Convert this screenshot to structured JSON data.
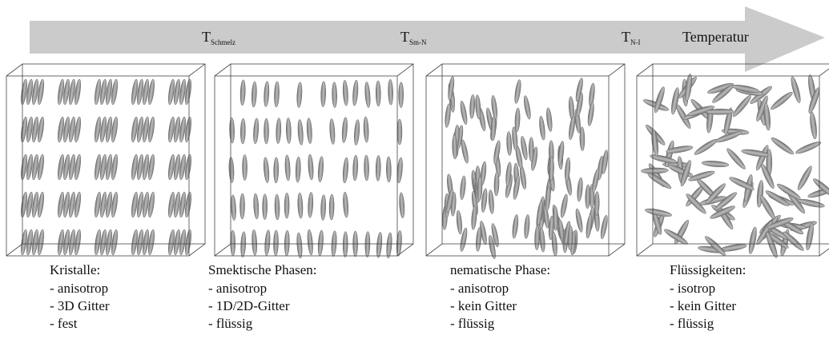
{
  "arrow": {
    "label": "Temperatur",
    "markers": [
      {
        "symbol": "T",
        "subscript": "Schmelz"
      },
      {
        "symbol": "T",
        "subscript": "Sm-N"
      },
      {
        "symbol": "T",
        "subscript": "N-I"
      }
    ]
  },
  "panels": [
    {
      "title": "Kristalle:",
      "items": [
        "- anisotrop",
        "- 3D Gitter",
        "- fest"
      ]
    },
    {
      "title": "Smektische Phasen:",
      "items": [
        "- anisotrop",
        "- 1D/2D-Gitter",
        "- flüssig"
      ]
    },
    {
      "title": "nematische Phase:",
      "items": [
        "- anisotrop",
        "- kein Gitter",
        "- flüssig"
      ]
    },
    {
      "title": "Flüssigkeiten:",
      "items": [
        "- isotrop",
        "- kein Gitter",
        "- flüssig"
      ]
    }
  ]
}
